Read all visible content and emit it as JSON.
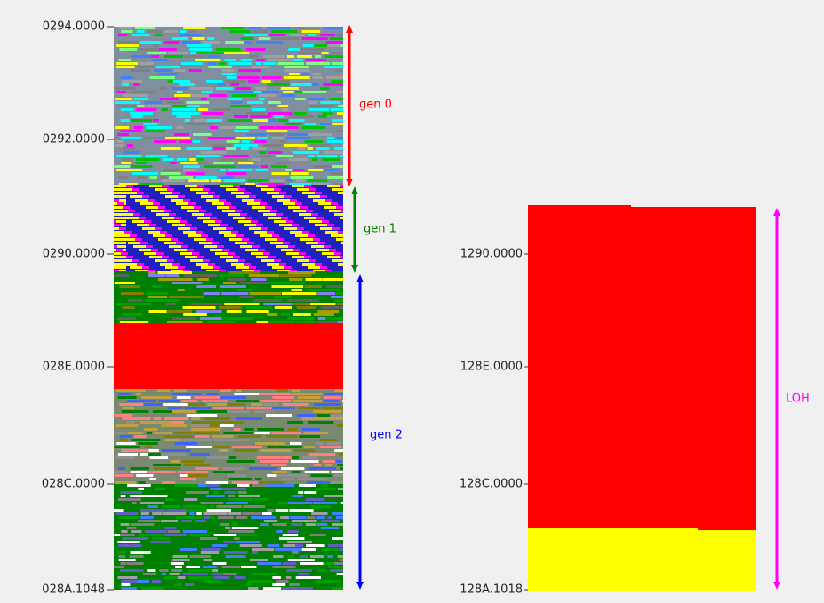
{
  "left_panel": {
    "ticks": [
      "0294.0000",
      "0292.0000",
      "0290.0000",
      "028E.0000",
      "028C.0000",
      "028A.1048"
    ],
    "generations": [
      "gen 0",
      "gen 1",
      "gen 2"
    ]
  },
  "right_panel": {
    "ticks": [
      "1290.0000",
      "128E.0000",
      "128C.0000",
      "128A.1018"
    ],
    "label": "LOH"
  }
}
